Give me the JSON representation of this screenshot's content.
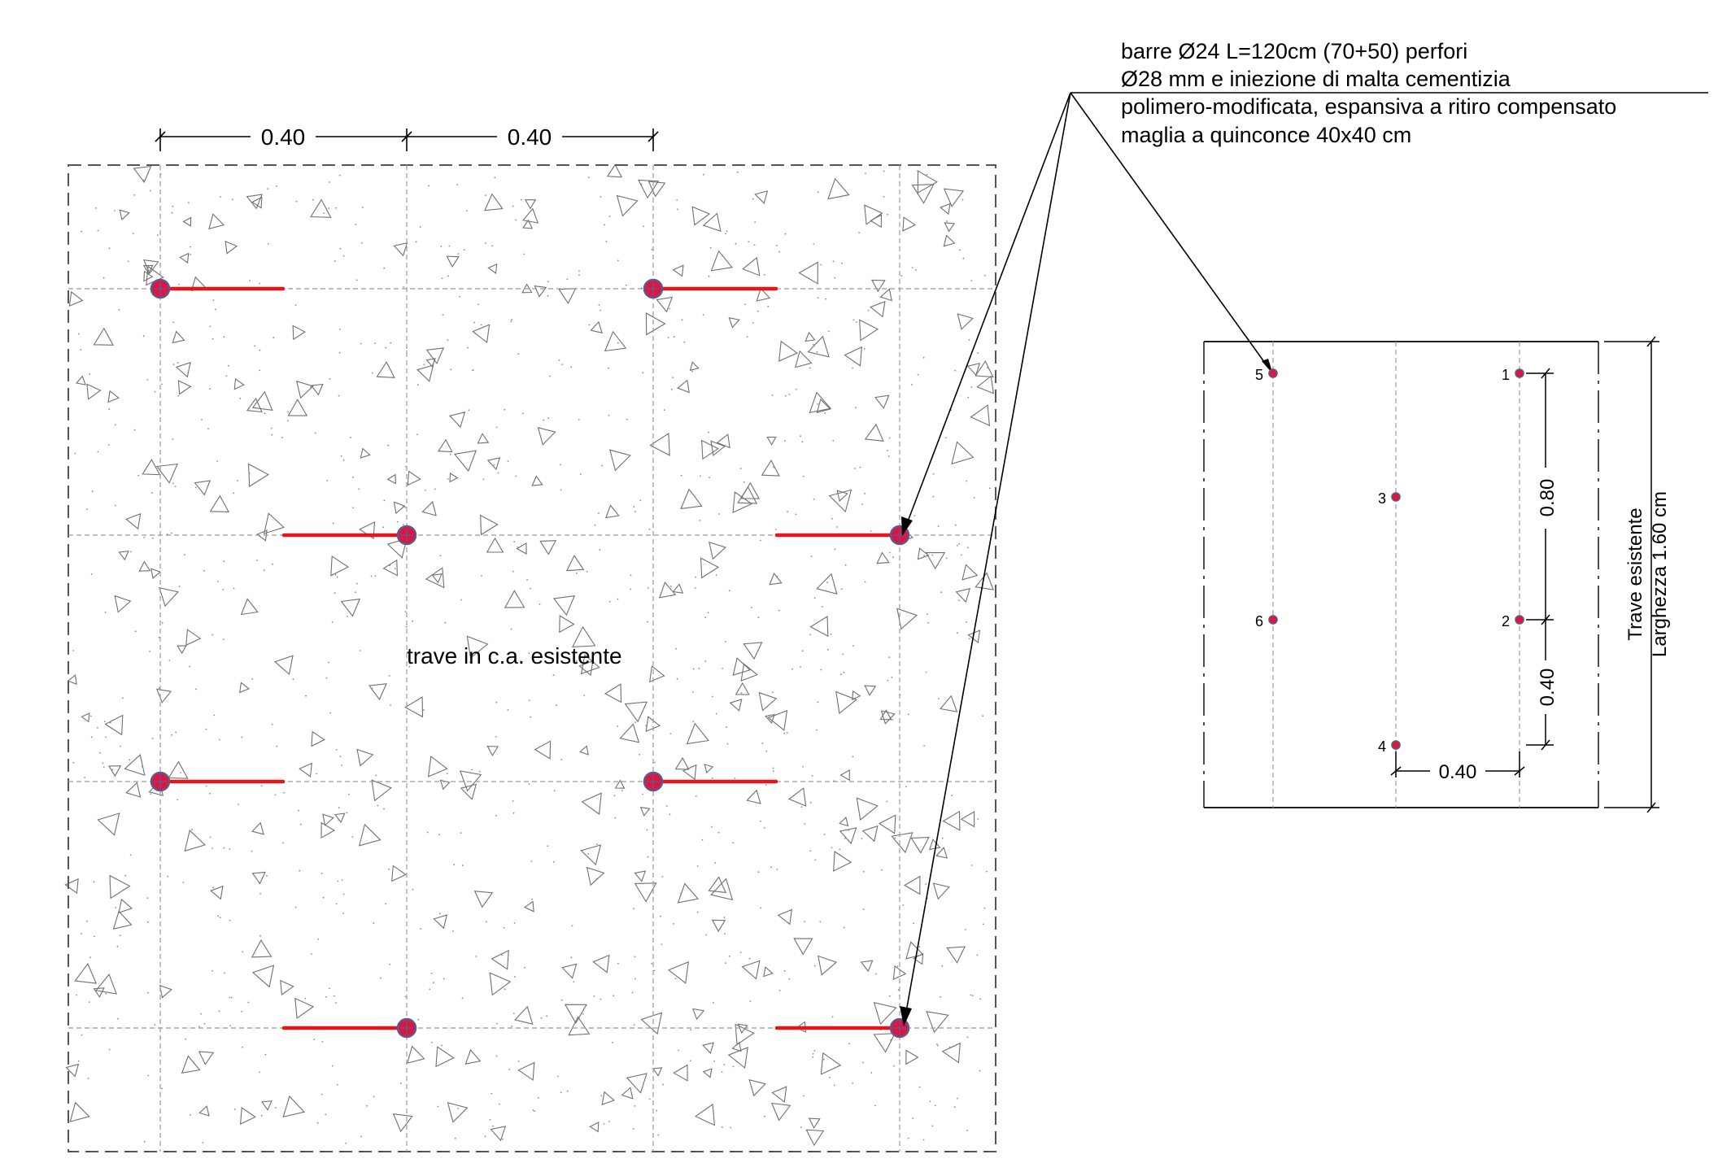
{
  "plan": {
    "spacing_top_left": "0.40",
    "spacing_top_right": "0.40",
    "beam_label": "trave in c.a. esistente"
  },
  "note": {
    "line1": "barre Ø24 L=120cm (70+50) perfori",
    "line2": "Ø28 mm e iniezione di malta cementizia",
    "line3": "polimero-modificata, espansiva a ritiro compensato",
    "line4": "maglia a quinconce 40x40 cm"
  },
  "section": {
    "points": [
      "1",
      "2",
      "3",
      "4",
      "5",
      "6"
    ],
    "dim_vertical_upper": "0.80",
    "dim_vertical_lower": "0.40",
    "dim_horizontal": "0.40",
    "label_line1": "Trave esistente",
    "label_line2": "Larghezza 1.60 cm"
  },
  "colors": {
    "bar": "#e8141c",
    "anchor": "#e0143c",
    "line": "#000000",
    "grid": "#8a8a8a",
    "hatch": "#707070"
  }
}
